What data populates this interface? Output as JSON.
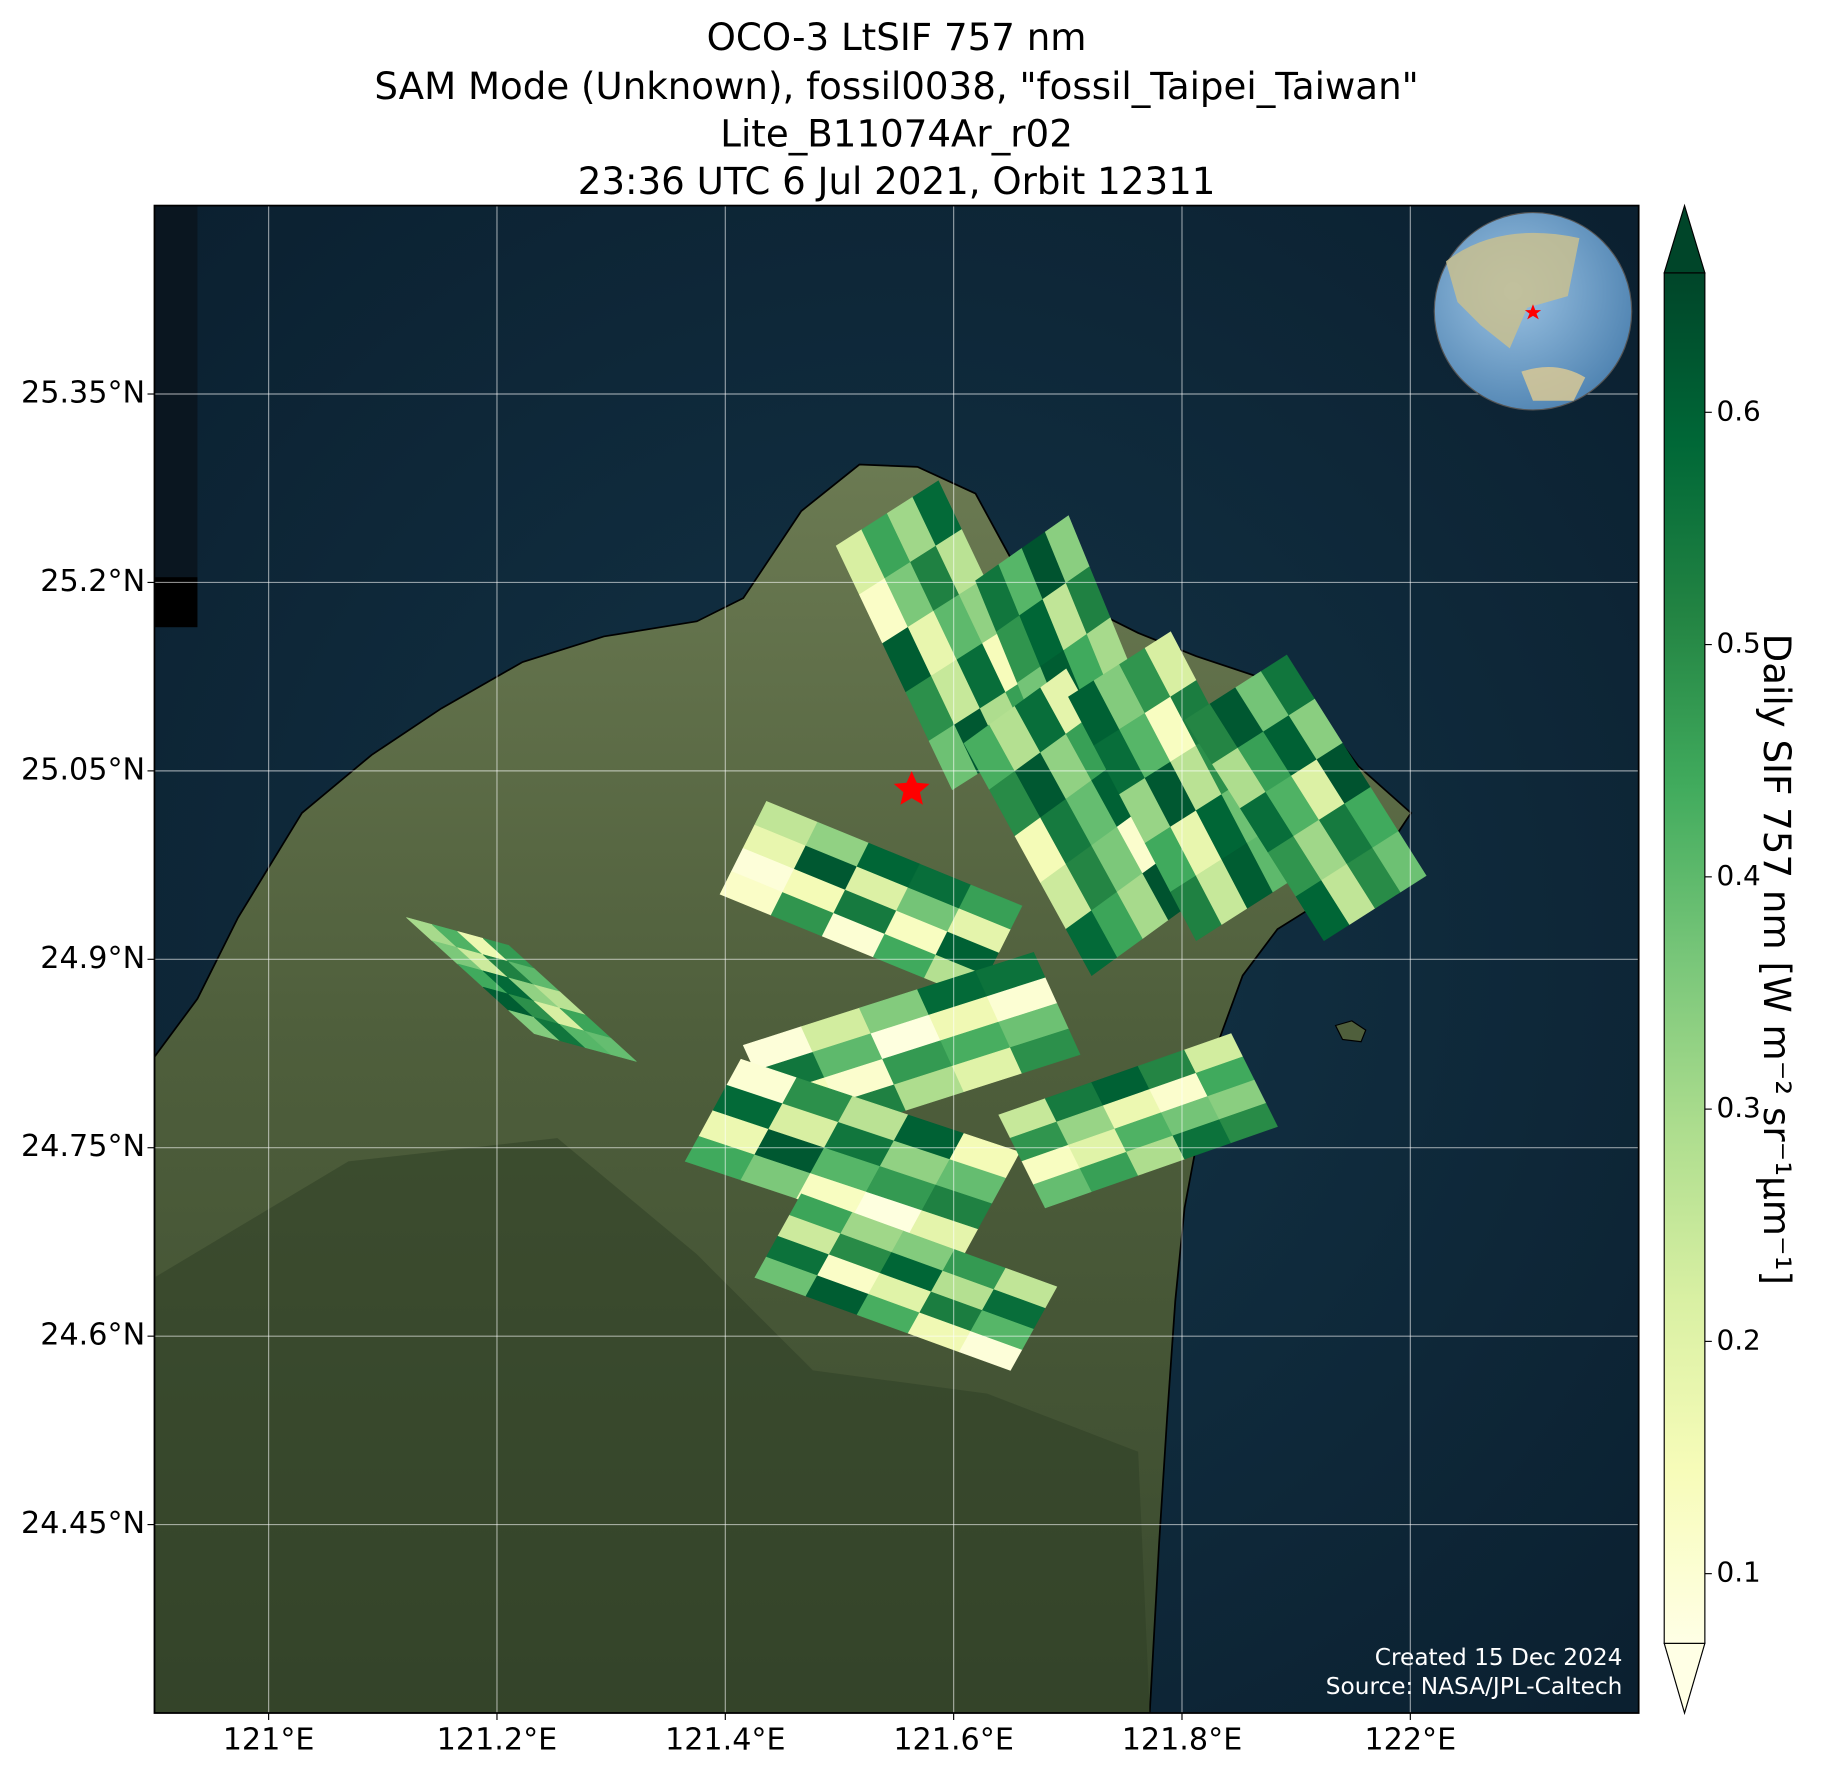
{
  "chart_data": {
    "type": "map",
    "title": [
      "OCO-3 LtSIF 757 nm",
      "SAM Mode (Unknown), fossil0038, \"fossil_Taipei_Taiwan\"",
      "Lite_B11074Ar_r02",
      "23:36 UTC 6 Jul 2021, Orbit 12311"
    ],
    "xlim": [
      120.9,
      122.2
    ],
    "ylim": [
      24.3,
      25.5
    ],
    "xticks": [
      {
        "value": 121.0,
        "label": "121°E"
      },
      {
        "value": 121.2,
        "label": "121.2°E"
      },
      {
        "value": 121.4,
        "label": "121.4°E"
      },
      {
        "value": 121.6,
        "label": "121.6°E"
      },
      {
        "value": 121.8,
        "label": "121.8°E"
      },
      {
        "value": 122.0,
        "label": "122°E"
      }
    ],
    "yticks": [
      {
        "value": 24.45,
        "label": "24.45°N"
      },
      {
        "value": 24.6,
        "label": "24.6°N"
      },
      {
        "value": 24.75,
        "label": "24.75°N"
      },
      {
        "value": 24.9,
        "label": "24.9°N"
      },
      {
        "value": 25.05,
        "label": "25.05°N"
      },
      {
        "value": 25.2,
        "label": "25.2°N"
      },
      {
        "value": 25.35,
        "label": "25.35°N"
      }
    ],
    "grid": true,
    "colorbar": {
      "label": "Daily SIF 757 nm [W m⁻² sr⁻¹μm⁻¹]",
      "clim": [
        0.07,
        0.66
      ],
      "ticks": [
        0.1,
        0.2,
        0.3,
        0.4,
        0.5,
        0.6
      ],
      "colors": [
        "#ffffe5",
        "#f7fcb9",
        "#d9f0a3",
        "#addd8e",
        "#78c679",
        "#41ab5d",
        "#238443",
        "#006837",
        "#004529"
      ]
    },
    "swaths": [
      {
        "values": [
          0.22,
          0.45,
          0.31,
          0.58,
          0.12,
          0.36,
          0.52,
          0.27,
          0.61,
          0.18,
          0.4,
          0.33,
          0.49,
          0.25,
          0.57,
          0.14,
          0.38,
          0.62,
          0.29,
          0.46
        ]
      },
      {
        "values": [
          0.55,
          0.41,
          0.63,
          0.34,
          0.48,
          0.59,
          0.26,
          0.52,
          0.37,
          0.61,
          0.44,
          0.3,
          0.56,
          0.21,
          0.47,
          0.6,
          0.35,
          0.53,
          0.42,
          0.58
        ]
      },
      {
        "values": [
          0.43,
          0.28,
          0.57,
          0.19,
          0.5,
          0.62,
          0.33,
          0.46,
          0.15,
          0.54,
          0.39,
          0.6,
          0.24,
          0.51,
          0.36,
          0.11,
          0.58,
          0.45,
          0.3,
          0.63
        ]
      },
      {
        "values": [
          0.6,
          0.35,
          0.48,
          0.22,
          0.57,
          0.41,
          0.13,
          0.53,
          0.32,
          0.62,
          0.27,
          0.49,
          0.44,
          0.18,
          0.59,
          0.38,
          0.52,
          0.25,
          0.61,
          0.4
        ]
      },
      {
        "values": [
          0.51,
          0.62,
          0.37,
          0.55,
          0.29,
          0.46,
          0.6,
          0.34,
          0.57,
          0.42,
          0.21,
          0.63,
          0.48,
          0.31,
          0.54,
          0.44,
          0.59,
          0.26,
          0.5,
          0.38
        ]
      },
      {
        "values": [
          0.3,
          0.42,
          0.17,
          0.47,
          0.36,
          0.24,
          0.52,
          0.4,
          0.44,
          0.58,
          0.33,
          0.27,
          0.61,
          0.49,
          0.22,
          0.45,
          0.35,
          0.55,
          0.41,
          0.39
        ]
      },
      {
        "values": [
          0.12,
          0.09,
          0.18,
          0.26,
          0.48,
          0.15,
          0.62,
          0.33,
          0.1,
          0.54,
          0.21,
          0.59,
          0.44,
          0.13,
          0.37,
          0.57,
          0.28,
          0.6,
          0.19,
          0.46
        ]
      },
      {
        "values": [
          0.09,
          0.55,
          0.14,
          0.61,
          0.23,
          0.4,
          0.11,
          0.52,
          0.35,
          0.08,
          0.47,
          0.29,
          0.58,
          0.16,
          0.43,
          0.2,
          0.56,
          0.1,
          0.38,
          0.49
        ]
      },
      {
        "values": [
          0.44,
          0.17,
          0.58,
          0.1,
          0.36,
          0.62,
          0.22,
          0.49,
          0.13,
          0.41,
          0.55,
          0.27,
          0.08,
          0.47,
          0.33,
          0.6,
          0.19,
          0.52,
          0.39,
          0.15
        ]
      },
      {
        "values": [
          0.38,
          0.56,
          0.24,
          0.45,
          0.61,
          0.12,
          0.5,
          0.31,
          0.43,
          0.2,
          0.59,
          0.35,
          0.16,
          0.53,
          0.28,
          0.47,
          0.09,
          0.41,
          0.57,
          0.26
        ]
      },
      {
        "values": [
          0.25,
          0.48,
          0.13,
          0.39,
          0.54,
          0.32,
          0.2,
          0.46,
          0.6,
          0.17,
          0.42,
          0.29,
          0.51,
          0.11,
          0.37,
          0.56,
          0.23,
          0.44,
          0.34,
          0.5
        ]
      }
    ],
    "credits": [
      "Created 15 Dec 2024",
      "Source: NASA/JPL-Caltech"
    ]
  }
}
